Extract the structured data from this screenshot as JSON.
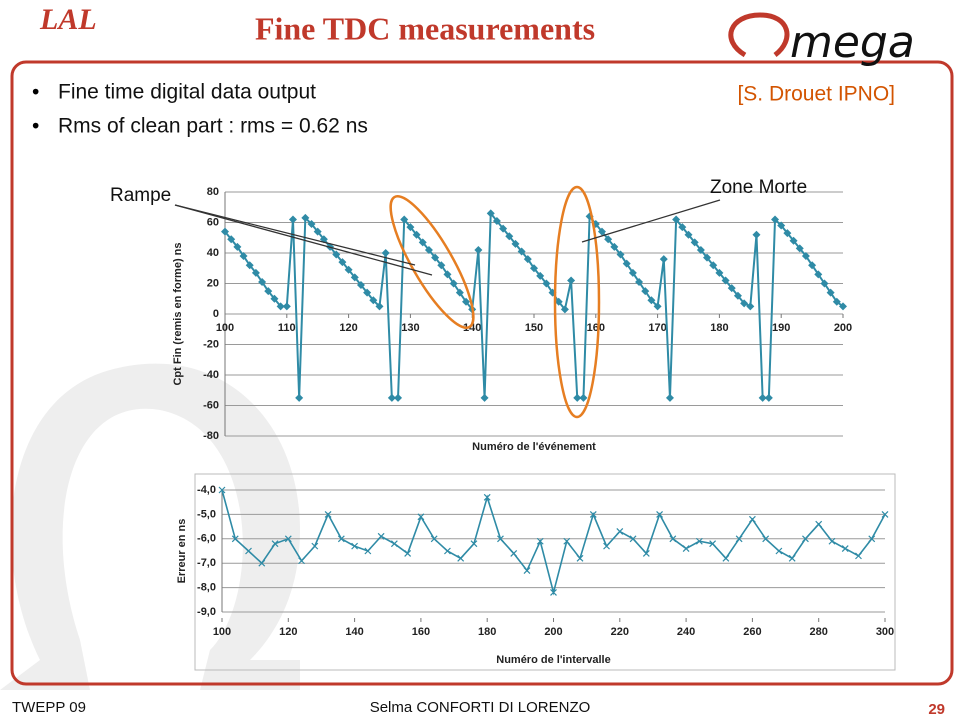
{
  "title": "Fine TDC measurements",
  "logos": [
    "LAL",
    "mega"
  ],
  "bullets": [
    "Fine time digital data output",
    "Rms of clean part : rms = 0.62 ns"
  ],
  "reference": "[S. Drouet IPNO]",
  "footer": {
    "left": "TWEPP 09",
    "center": "Selma CONFORTI DI LORENZO",
    "page": "29"
  },
  "chart_data": [
    {
      "type": "line",
      "marker": "diamond",
      "color": "#2f8ba6",
      "ylabel": "Cpt Fin (remis en forme) ns",
      "xlabel": "Numéro de l'événement",
      "annotations": [
        "Rampe",
        "Zone Morte"
      ],
      "xlim": [
        100,
        200
      ],
      "xticks": [
        100,
        110,
        120,
        130,
        140,
        150,
        160,
        170,
        180,
        190,
        200
      ],
      "ylim": [
        -80,
        80
      ],
      "yticks": [
        80,
        60,
        40,
        20,
        0,
        -20,
        -40,
        -60,
        -80
      ],
      "grid": true,
      "x": [
        100,
        101,
        102,
        103,
        104,
        105,
        106,
        107,
        108,
        109,
        110,
        111,
        112,
        113,
        114,
        115,
        116,
        117,
        118,
        119,
        120,
        121,
        122,
        123,
        124,
        125,
        126,
        127,
        128,
        129,
        130,
        131,
        132,
        133,
        134,
        135,
        136,
        137,
        138,
        139,
        140,
        141,
        142,
        143,
        144,
        145,
        146,
        147,
        148,
        149,
        150,
        151,
        152,
        153,
        154,
        155,
        156,
        157,
        158,
        159,
        160,
        161,
        162,
        163,
        164,
        165,
        166,
        167,
        168,
        169,
        170,
        171,
        172,
        173,
        174,
        175,
        176,
        177,
        178,
        179,
        180,
        181,
        182,
        183,
        184,
        185,
        186,
        187,
        188,
        189,
        190,
        191,
        192,
        193,
        194,
        195,
        196,
        197,
        198,
        199,
        200
      ],
      "values": [
        54,
        49,
        44,
        38,
        32,
        27,
        21,
        15,
        10,
        5,
        5,
        62,
        -55,
        63,
        59,
        54,
        49,
        44,
        39,
        34,
        29,
        24,
        19,
        14,
        9,
        5,
        40,
        -55,
        -55,
        62,
        57,
        52,
        47,
        42,
        37,
        32,
        26,
        20,
        14,
        8,
        3,
        42,
        -55,
        66,
        61,
        56,
        51,
        46,
        41,
        36,
        30,
        25,
        20,
        14,
        8,
        3,
        22,
        -55,
        -55,
        64,
        59,
        54,
        49,
        44,
        39,
        33,
        27,
        21,
        15,
        9,
        5,
        36,
        -55,
        62,
        57,
        52,
        47,
        42,
        37,
        32,
        27,
        22,
        17,
        12,
        7,
        5,
        52,
        -55,
        -55,
        62,
        58,
        53,
        48,
        43,
        38,
        32,
        26,
        20,
        14,
        8,
        5
      ]
    },
    {
      "type": "line",
      "marker": "x",
      "color": "#2f8ba6",
      "ylabel": "Erreur en ns",
      "xlabel": "Numéro de l'intervalle",
      "xlim": [
        100,
        300
      ],
      "xticks": [
        100,
        120,
        140,
        160,
        180,
        200,
        220,
        240,
        260,
        280,
        300
      ],
      "ylim": [
        -9,
        -4
      ],
      "yticks": [
        {
          "value": -4,
          "label": "-4,0"
        },
        {
          "value": -5,
          "label": "-5,0"
        },
        {
          "value": -6,
          "label": "-6,0"
        },
        {
          "value": -7,
          "label": "-7,0"
        },
        {
          "value": -8,
          "label": "-8,0"
        },
        {
          "value": -9,
          "label": "-9,0"
        }
      ],
      "grid": true,
      "x": [
        100,
        104,
        108,
        112,
        116,
        120,
        124,
        128,
        132,
        136,
        140,
        144,
        148,
        152,
        156,
        160,
        164,
        168,
        172,
        176,
        180,
        184,
        188,
        192,
        196,
        200,
        204,
        208,
        212,
        216,
        220,
        224,
        228,
        232,
        236,
        240,
        244,
        248,
        252,
        256,
        260,
        264,
        268,
        272,
        276,
        280,
        284,
        288,
        292,
        296,
        300
      ],
      "values": [
        -4.0,
        -6.0,
        -6.5,
        -7.0,
        -6.2,
        -6.0,
        -6.9,
        -6.3,
        -5.0,
        -6.0,
        -6.3,
        -6.5,
        -5.9,
        -6.2,
        -6.6,
        -5.1,
        -6.0,
        -6.5,
        -6.8,
        -6.2,
        -4.3,
        -6.0,
        -6.6,
        -7.3,
        -6.1,
        -8.2,
        -6.1,
        -6.8,
        -5.0,
        -6.3,
        -5.7,
        -6.0,
        -6.6,
        -5.0,
        -6.0,
        -6.4,
        -6.1,
        -6.2,
        -6.8,
        -6.0,
        -5.2,
        -6.0,
        -6.5,
        -6.8,
        -6.0,
        -5.4,
        -6.1,
        -6.4,
        -6.7,
        -6.0,
        -5.0
      ]
    }
  ]
}
